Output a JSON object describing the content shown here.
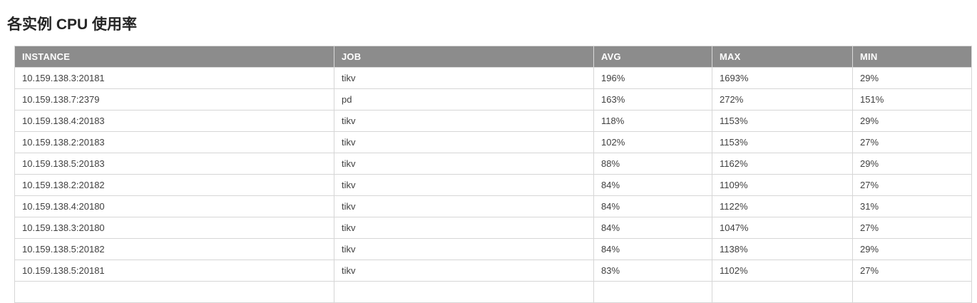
{
  "page": {
    "title": "各实例 CPU 使用率"
  },
  "colors": {
    "header_bg": "#8c8c8c",
    "header_text": "#ffffff",
    "body_text": "#404040",
    "border": "#d6d6d6",
    "title_text": "#252525"
  },
  "table": {
    "columns": [
      {
        "key": "instance",
        "label": "INSTANCE"
      },
      {
        "key": "job",
        "label": "JOB"
      },
      {
        "key": "avg",
        "label": "AVG"
      },
      {
        "key": "max",
        "label": "MAX"
      },
      {
        "key": "min",
        "label": "MIN"
      }
    ],
    "rows": [
      {
        "instance": "10.159.138.3:20181",
        "job": "tikv",
        "avg": "196%",
        "max": "1693%",
        "min": "29%"
      },
      {
        "instance": "10.159.138.7:2379",
        "job": "pd",
        "avg": "163%",
        "max": "272%",
        "min": "151%"
      },
      {
        "instance": "10.159.138.4:20183",
        "job": "tikv",
        "avg": "118%",
        "max": "1153%",
        "min": "29%"
      },
      {
        "instance": "10.159.138.2:20183",
        "job": "tikv",
        "avg": "102%",
        "max": "1153%",
        "min": "27%"
      },
      {
        "instance": "10.159.138.5:20183",
        "job": "tikv",
        "avg": "88%",
        "max": "1162%",
        "min": "29%"
      },
      {
        "instance": "10.159.138.2:20182",
        "job": "tikv",
        "avg": "84%",
        "max": "1109%",
        "min": "27%"
      },
      {
        "instance": "10.159.138.4:20180",
        "job": "tikv",
        "avg": "84%",
        "max": "1122%",
        "min": "31%"
      },
      {
        "instance": "10.159.138.3:20180",
        "job": "tikv",
        "avg": "84%",
        "max": "1047%",
        "min": "27%"
      },
      {
        "instance": "10.159.138.5:20182",
        "job": "tikv",
        "avg": "84%",
        "max": "1138%",
        "min": "29%"
      },
      {
        "instance": "10.159.138.5:20181",
        "job": "tikv",
        "avg": "83%",
        "max": "1102%",
        "min": "27%"
      }
    ],
    "clipped_extra_row": true
  }
}
